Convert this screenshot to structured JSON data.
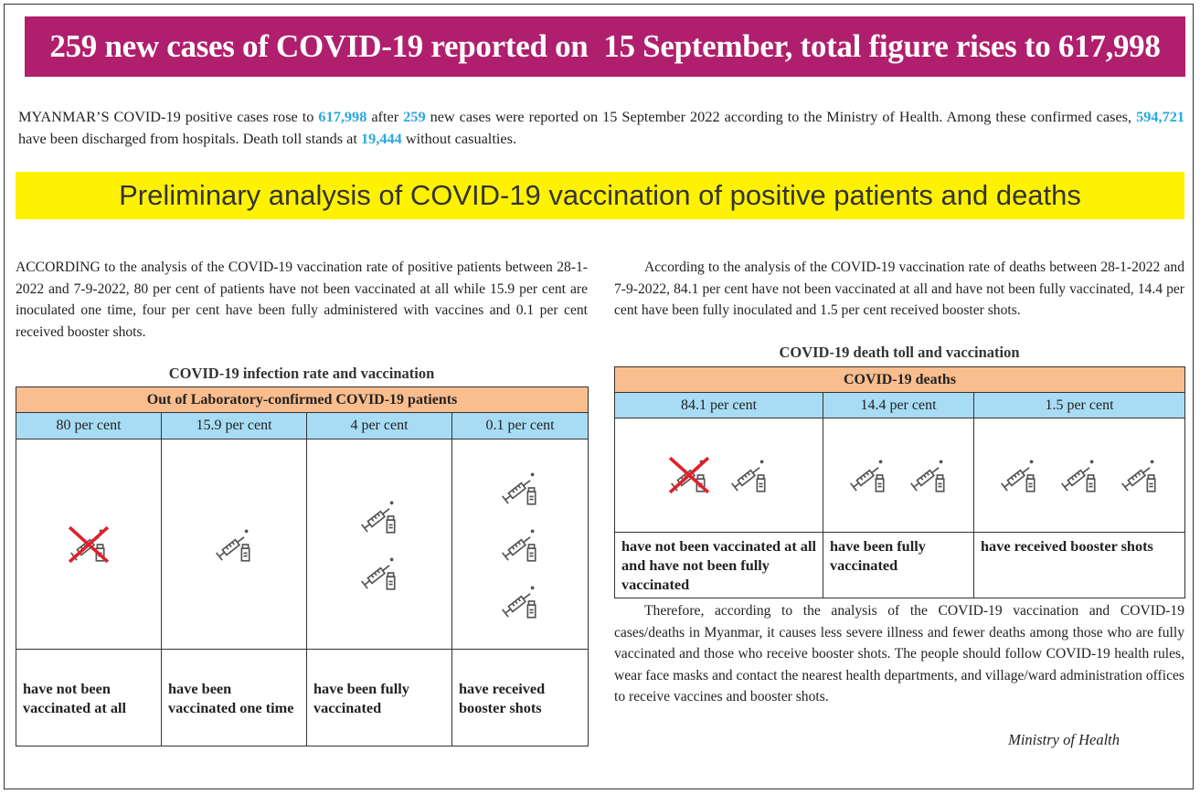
{
  "header": {
    "title": "259 new cases of COVID-19 reported on  15 September, total figure rises to 617,998"
  },
  "intro": {
    "segments": [
      "MYANMAR’S COVID-19 positive cases rose to ",
      "617,998",
      " after ",
      "259",
      " new cases were reported on 15 September 2022 according to the Ministry of Health. Among these confirmed cases, ",
      "594,721",
      " have been discharged from hospitals. Death toll stands at ",
      "19,444",
      " without casualties."
    ]
  },
  "banner": {
    "title": "Preliminary analysis of COVID-19 vaccination of positive patients and deaths"
  },
  "infection": {
    "paragraph": "ACCORDING to the analysis of the COVID-19 vaccination rate of positive patients between 28-1-2022 and 7-9-2022, 80 per cent of patients have not been vaccinated at all while 15.9 per cent are inoculated one time, four per cent have been fully administered with vaccines and 0.1 per cent received booster shots.",
    "table": {
      "title": "COVID-19 infection rate and vaccination",
      "header": "Out of Laboratory-confirmed COVID-19 patients",
      "columns": [
        {
          "percent": "80 per cent",
          "label": "have not been vaccinated at all"
        },
        {
          "percent": "15.9 per cent",
          "label": "have been vaccinated one time"
        },
        {
          "percent": "4 per cent",
          "label": "have been fully vaccinated"
        },
        {
          "percent": "0.1 per cent",
          "label": "have received booster shots"
        }
      ]
    }
  },
  "deaths": {
    "paragraph": "According to the analysis of the COVID-19 vaccination rate of deaths between 28-1-2022 and 7-9-2022, 84.1 per cent have not been vaccinated at all and have not been fully vaccinated, 14.4 per cent have been fully inoculated and 1.5 per cent received booster shots.",
    "table": {
      "title": "COVID-19 death toll and vaccination",
      "header": "COVID-19 deaths",
      "columns": [
        {
          "percent": "84.1 per cent",
          "label": "have not been vaccinated at all and have not been fully  vaccinated"
        },
        {
          "percent": "14.4 per cent",
          "label": "have been fully vaccinated"
        },
        {
          "percent": "1.5 per cent",
          "label": "have received booster shots"
        }
      ]
    }
  },
  "conclusion": {
    "paragraph": "Therefore, according to the analysis of the COVID-19 vaccination and COVID-19 cases/deaths in Myanmar, it causes less severe illness and fewer deaths among those who are fully vaccinated and those who receive booster shots. The people should follow COVID-19 health rules, wear face masks and contact the nearest health departments, and village/ward administration offices to receive vaccines and booster shots.",
    "signature": "Ministry of Health"
  }
}
